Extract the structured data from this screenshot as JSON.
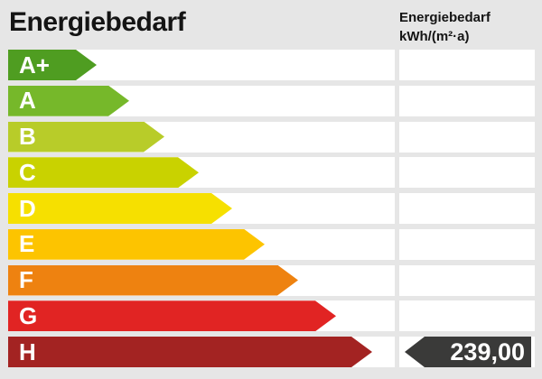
{
  "header": {
    "title": "Energiebedarf",
    "unit_line1": "Energiebedarf",
    "unit_line2": "kWh/(m²·a)"
  },
  "value_tag": {
    "text": "239,00",
    "color": "#3a3a39",
    "text_color": "#ffffff"
  },
  "chart_data": {
    "type": "bar",
    "title": "Energiebedarf",
    "unit": "kWh/(m²·a)",
    "categories": [
      "A+",
      "A",
      "B",
      "C",
      "D",
      "E",
      "F",
      "G",
      "H"
    ],
    "rows": [
      {
        "label": "A+",
        "color": "#4f9d21",
        "arrow_width": 98
      },
      {
        "label": "A",
        "color": "#76b82a",
        "arrow_width": 134
      },
      {
        "label": "B",
        "color": "#b8cc29",
        "arrow_width": 173
      },
      {
        "label": "C",
        "color": "#c9d200",
        "arrow_width": 211
      },
      {
        "label": "D",
        "color": "#f6e000",
        "arrow_width": 248
      },
      {
        "label": "E",
        "color": "#fdc400",
        "arrow_width": 284
      },
      {
        "label": "F",
        "color": "#ee8210",
        "arrow_width": 321
      },
      {
        "label": "G",
        "color": "#e12423",
        "arrow_width": 363
      },
      {
        "label": "H",
        "color": "#a32322",
        "arrow_width": 403
      }
    ],
    "value": {
      "amount": "239,00",
      "assigned_class": "H"
    },
    "legend_position": "none",
    "grid": false,
    "background": "#e6e6e6",
    "row_background": "#ffffff"
  }
}
